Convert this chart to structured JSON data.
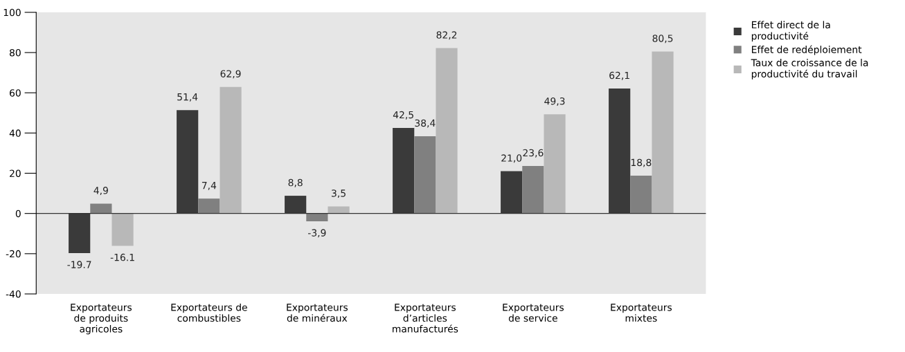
{
  "chart_data": {
    "type": "bar",
    "categories": [
      "Exportateurs\nde produits\nagricoles",
      "Exportateurs de\ncombustibles",
      "Exportateurs\nde minéraux",
      "Exportateurs\nd’articles\nmanufacturés",
      "Exportateurs\nde service",
      "Exportateurs\nmixtes"
    ],
    "series": [
      {
        "name": "Effet direct de la\nproductivité",
        "color": "#3a3a3a",
        "values": [
          -19.7,
          51.4,
          8.8,
          42.5,
          21.0,
          62.1
        ],
        "value_labels": [
          "-19.7",
          "51,4",
          "8,8",
          "42,5",
          "21,0",
          "62,1"
        ]
      },
      {
        "name": "Effet de redéploiement",
        "color": "#808080",
        "values": [
          4.9,
          7.4,
          -3.9,
          38.4,
          23.6,
          18.8
        ],
        "value_labels": [
          "4,9",
          "7,4",
          "-3,9",
          "38,4",
          "23,6",
          "18,8"
        ]
      },
      {
        "name": "Taux de croissance de la\nproductivité du travail",
        "color": "#b8b8b8",
        "values": [
          -16.1,
          62.9,
          3.5,
          82.2,
          49.3,
          80.5
        ],
        "value_labels": [
          "-16.1",
          "62,9",
          "3,5",
          "82,2",
          "49,3",
          "80,5"
        ]
      }
    ],
    "ylim": [
      -40,
      100
    ],
    "yticks": [
      -40,
      -20,
      0,
      20,
      40,
      60,
      80,
      100
    ],
    "ref_lines": [
      {
        "axis": "y",
        "value": 0,
        "color": "#333333"
      }
    ],
    "grid": false,
    "legend": "top right"
  }
}
